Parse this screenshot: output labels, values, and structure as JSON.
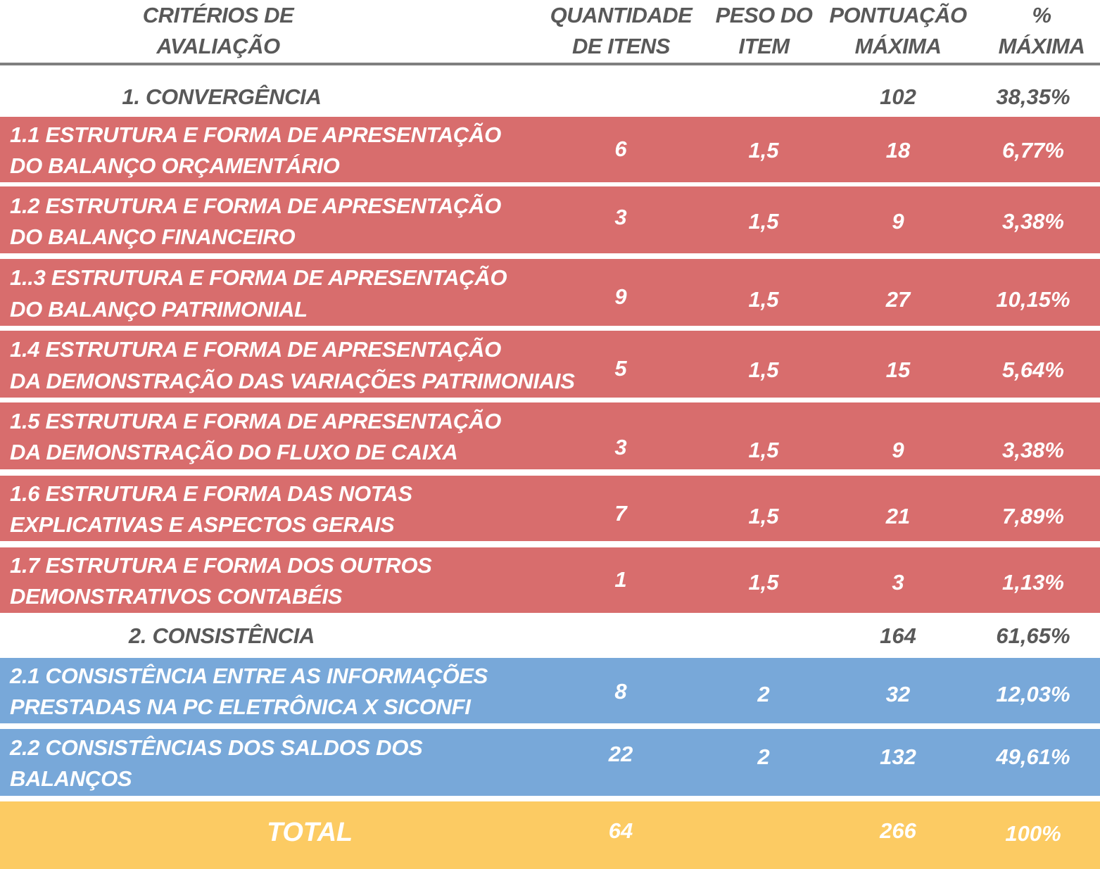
{
  "columns": {
    "criteria": [
      "CRITÉRIOS DE",
      "AVALIAÇÃO"
    ],
    "qty": [
      "QUANTIDADE",
      "DE ITENS"
    ],
    "weight": [
      "PESO DO",
      "ITEM"
    ],
    "max_score": [
      "PONTUAÇÃO",
      "MÁXIMA"
    ],
    "max_pct": [
      "%",
      "MÁXIMA"
    ]
  },
  "sections": [
    {
      "title": "1. CONVERGÊNCIA",
      "max_score": "102",
      "max_pct": "38,35%"
    },
    {
      "title": "2. CONSISTÊNCIA",
      "max_score": "164",
      "max_pct": "61,65%"
    }
  ],
  "rows": [
    {
      "line1": "1.1 ESTRUTURA E FORMA DE APRESENTAÇÃO",
      "line2": "DO BALANÇO ORÇAMENTÁRIO",
      "qty": "6",
      "weight": "1,5",
      "max_score": "18",
      "max_pct": "6,77%"
    },
    {
      "line1": "1.2 ESTRUTURA E FORMA DE APRESENTAÇÃO",
      "line2": "DO BALANÇO FINANCEIRO",
      "qty": "3",
      "weight": "1,5",
      "max_score": "9",
      "max_pct": "3,38%"
    },
    {
      "line1": "1..3 ESTRUTURA E FORMA DE APRESENTAÇÃO",
      "line2": "DO BALANÇO PATRIMONIAL",
      "qty": "9",
      "weight": "1,5",
      "max_score": "27",
      "max_pct": "10,15%"
    },
    {
      "line1": "1.4 ESTRUTURA E FORMA DE APRESENTAÇÃO",
      "line2": "DA DEMONSTRAÇÃO DAS VARIAÇÕES PATRIMONIAIS",
      "qty": "5",
      "weight": "1,5",
      "max_score": "15",
      "max_pct": "5,64%"
    },
    {
      "line1": "1.5 ESTRUTURA E FORMA DE APRESENTAÇÃO",
      "line2": "DA DEMONSTRAÇÃO DO FLUXO DE CAIXA",
      "qty": "3",
      "weight": "1,5",
      "max_score": "9",
      "max_pct": "3,38%"
    },
    {
      "line1": "1.6 ESTRUTURA E FORMA DAS NOTAS",
      "line2": "EXPLICATIVAS E ASPECTOS GERAIS",
      "qty": "7",
      "weight": "1,5",
      "max_score": "21",
      "max_pct": "7,89%"
    },
    {
      "line1": "1.7 ESTRUTURA E FORMA DOS OUTROS",
      "line2": "DEMONSTRATIVOS CONTABÉIS",
      "qty": "1",
      "weight": "1,5",
      "max_score": "3",
      "max_pct": "1,13%"
    },
    {
      "line1": "2.1 CONSISTÊNCIA ENTRE AS INFORMAÇÕES",
      "line2": "PRESTADAS NA PC ELETRÔNICA X SICONFI",
      "qty": "8",
      "weight": "2",
      "max_score": "32",
      "max_pct": "12,03%"
    },
    {
      "line1": "2.2 CONSISTÊNCIAS DOS SALDOS DOS",
      "line2": "BALANÇOS",
      "qty": "22",
      "weight": "2",
      "max_score": "132",
      "max_pct": "49,61%"
    }
  ],
  "total": {
    "label": "TOTAL",
    "qty": "64",
    "max_score": "266",
    "max_pct": "100%"
  },
  "colors": {
    "convergence_row": "#d86d6d",
    "consistency_row": "#78a8d9",
    "total_row": "#fccb63",
    "header_text": "#595959"
  }
}
